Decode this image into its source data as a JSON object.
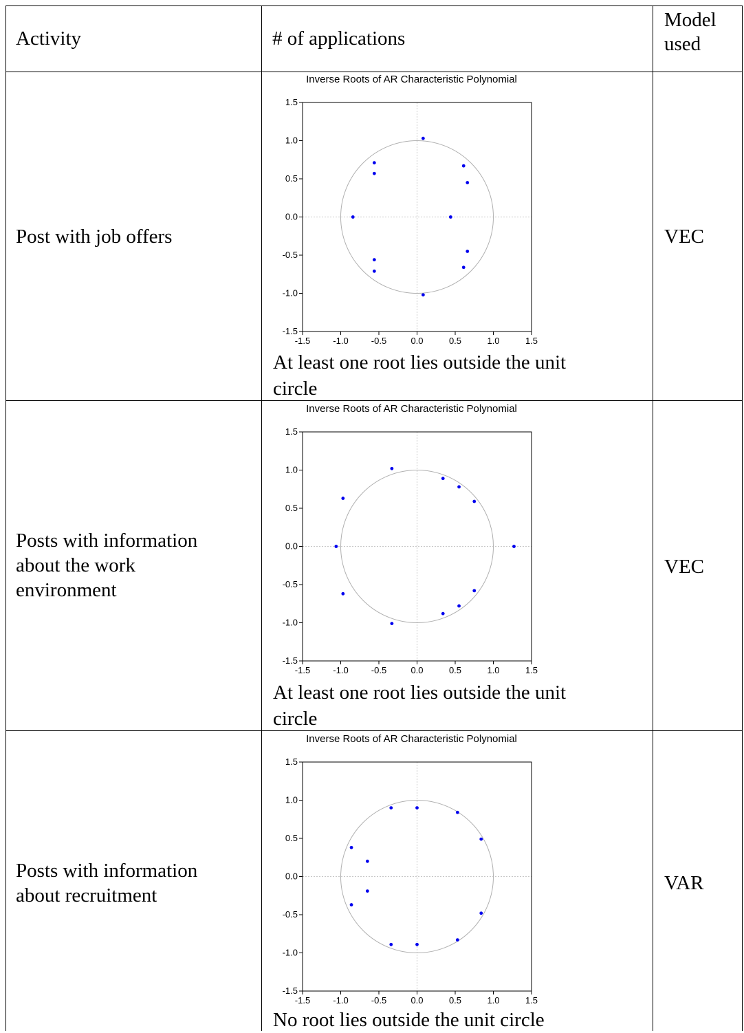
{
  "table": {
    "headers": {
      "activity": "Activity",
      "applications": "# of applications",
      "model_line1": "Model",
      "model_line2": "used"
    },
    "rows": [
      {
        "activity_lines": [
          "Post with job offers"
        ],
        "caption_lines": [
          "At least one root lies outside the unit",
          "circle"
        ],
        "model": "VEC"
      },
      {
        "activity_lines": [
          "Posts with information",
          "about the work",
          "environment"
        ],
        "caption_lines": [
          "At least one root lies outside the unit",
          "circle"
        ],
        "model": "VEC"
      },
      {
        "activity_lines": [
          "Posts with information",
          "about recruitment"
        ],
        "caption_lines": [
          "No root lies outside the unit circle"
        ],
        "model": "VAR"
      }
    ]
  },
  "chart_data": [
    {
      "type": "scatter",
      "title": "Inverse Roots of AR Characteristic Polynomial",
      "xlim": [
        -1.5,
        1.5
      ],
      "ylim": [
        -1.5,
        1.5
      ],
      "xticks": [
        "-1.5",
        "-1.0",
        "-0.5",
        "0.0",
        "0.5",
        "1.0",
        "1.5"
      ],
      "yticks": [
        "1.5",
        "1.0",
        "0.5",
        "0.0",
        "-0.5",
        "-1.0",
        "-1.5"
      ],
      "unit_circle": true,
      "point_color": "#0000ee",
      "circle_color": "#b0b0b0",
      "points": [
        [
          0.08,
          1.03
        ],
        [
          -0.56,
          0.71
        ],
        [
          -0.56,
          0.57
        ],
        [
          0.61,
          0.67
        ],
        [
          0.66,
          0.45
        ],
        [
          -0.84,
          0.0
        ],
        [
          0.44,
          0.0
        ],
        [
          0.66,
          -0.45
        ],
        [
          0.61,
          -0.66
        ],
        [
          -0.56,
          -0.56
        ],
        [
          -0.56,
          -0.71
        ],
        [
          0.08,
          -1.02
        ]
      ]
    },
    {
      "type": "scatter",
      "title": "Inverse Roots of AR Characteristic Polynomial",
      "xlim": [
        -1.5,
        1.5
      ],
      "ylim": [
        -1.5,
        1.5
      ],
      "xticks": [
        "-1.5",
        "-1.0",
        "-0.5",
        "0.0",
        "0.5",
        "1.0",
        "1.5"
      ],
      "yticks": [
        "1.5",
        "1.0",
        "0.5",
        "0.0",
        "-0.5",
        "-1.0",
        "-1.5"
      ],
      "unit_circle": true,
      "point_color": "#0000ee",
      "circle_color": "#b0b0b0",
      "points": [
        [
          -0.33,
          1.02
        ],
        [
          0.34,
          0.89
        ],
        [
          0.55,
          0.78
        ],
        [
          0.75,
          0.59
        ],
        [
          -0.97,
          0.63
        ],
        [
          -1.06,
          0.0
        ],
        [
          1.27,
          0.0
        ],
        [
          -0.97,
          -0.62
        ],
        [
          0.75,
          -0.58
        ],
        [
          0.55,
          -0.78
        ],
        [
          0.34,
          -0.88
        ],
        [
          -0.33,
          -1.01
        ]
      ]
    },
    {
      "type": "scatter",
      "title": "Inverse Roots of AR Characteristic Polynomial",
      "xlim": [
        -1.5,
        1.5
      ],
      "ylim": [
        -1.5,
        1.5
      ],
      "xticks": [
        "-1.5",
        "-1.0",
        "-0.5",
        "0.0",
        "0.5",
        "1.0",
        "1.5"
      ],
      "yticks": [
        "1.5",
        "1.0",
        "0.5",
        "0.0",
        "-0.5",
        "-1.0",
        "-1.5"
      ],
      "unit_circle": true,
      "point_color": "#0000ee",
      "circle_color": "#b0b0b0",
      "points": [
        [
          -0.34,
          0.9
        ],
        [
          0.0,
          0.9
        ],
        [
          0.53,
          0.84
        ],
        [
          0.84,
          0.49
        ],
        [
          -0.86,
          0.38
        ],
        [
          -0.65,
          0.2
        ],
        [
          -0.65,
          -0.19
        ],
        [
          -0.86,
          -0.37
        ],
        [
          0.84,
          -0.48
        ],
        [
          0.53,
          -0.83
        ],
        [
          -0.34,
          -0.89
        ],
        [
          0.0,
          -0.89
        ]
      ]
    }
  ]
}
